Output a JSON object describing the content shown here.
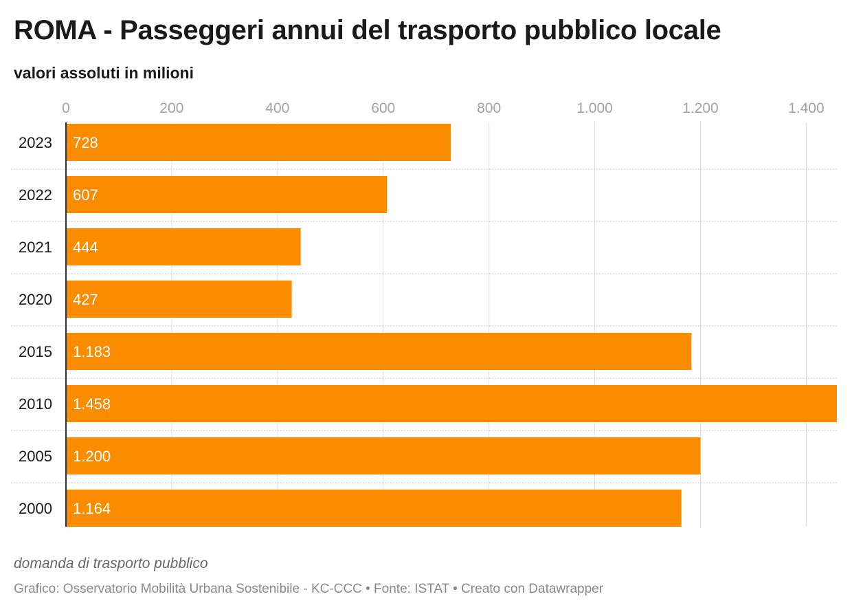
{
  "chart_data": {
    "type": "bar",
    "orientation": "horizontal",
    "title": "ROMA - Passeggeri annui del trasporto pubblico locale",
    "subtitle": "valori assoluti in milioni",
    "categories": [
      "2023",
      "2022",
      "2021",
      "2020",
      "2015",
      "2010",
      "2005",
      "2000"
    ],
    "values": [
      728,
      607,
      444,
      427,
      1183,
      1458,
      1200,
      1164
    ],
    "value_labels": [
      "728",
      "607",
      "444",
      "427",
      "1.183",
      "1.458",
      "1.200",
      "1.164"
    ],
    "x_ticks": [
      0,
      200,
      400,
      600,
      800,
      1000,
      1200,
      1400
    ],
    "x_tick_labels": [
      "0",
      "200",
      "400",
      "600",
      "800",
      "1.000",
      "1.200",
      "1.400"
    ],
    "xlim": [
      0,
      1458
    ],
    "grid": true,
    "bar_color": "#fb8c00",
    "notes": "domanda di trasporto pubblico",
    "source": "Grafico: Osservatorio Mobilità Urbana Sostenibile - KC-CCC • Fonte: ISTAT • Creato con Datawrapper"
  }
}
